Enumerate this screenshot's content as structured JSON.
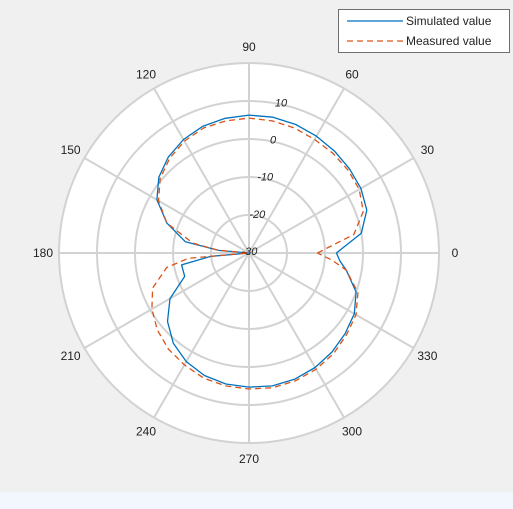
{
  "colors": {
    "background": "#f0f0f0",
    "axes_background": "#ffffff",
    "grid": "#d2d2d2",
    "simulated": "#0072bd",
    "measured": "#d95319"
  },
  "chart_data": {
    "type": "line",
    "subtype": "polar",
    "title": "",
    "theta_unit": "degrees",
    "angle_ticks": [
      0,
      30,
      60,
      90,
      120,
      150,
      180,
      210,
      240,
      270,
      300,
      330
    ],
    "angle_tick_labels": [
      "0",
      "30",
      "60",
      "90",
      "120",
      "150",
      "180",
      "210",
      "240",
      "270",
      "300",
      "330"
    ],
    "r_lim": [
      -30,
      20
    ],
    "r_ticks": [
      -30,
      -20,
      -10,
      0,
      10
    ],
    "r_tick_labels": [
      "-30",
      "-20",
      "-10",
      "0",
      "10"
    ],
    "grid": true,
    "legend_position": "top-right",
    "series": [
      {
        "name": "Simulated value",
        "line_style": "solid",
        "theta": [
          0,
          10,
          20,
          30,
          40,
          50,
          60,
          70,
          80,
          90,
          100,
          110,
          120,
          130,
          140,
          150,
          160,
          170,
          175,
          180,
          185,
          190,
          200,
          210,
          220,
          230,
          240,
          250,
          260,
          270,
          280,
          290,
          300,
          310,
          320,
          330,
          340,
          350,
          355,
          360
        ],
        "r": [
          -7,
          0,
          3,
          4,
          4.5,
          5,
          5.5,
          6,
          6.3,
          6.3,
          6,
          5.5,
          4.5,
          3,
          1,
          -2,
          -7,
          -13,
          -22,
          -30,
          -20,
          -12,
          -12,
          -6,
          -2,
          1,
          3,
          4.3,
          5,
          5.3,
          5.5,
          5.3,
          4.8,
          4,
          3,
          2,
          0,
          -4,
          -6,
          -7
        ]
      },
      {
        "name": "Measured value",
        "line_style": "dashed",
        "theta": [
          0,
          10,
          20,
          30,
          40,
          50,
          60,
          70,
          80,
          90,
          100,
          110,
          120,
          130,
          140,
          150,
          160,
          170,
          175,
          180,
          185,
          190,
          200,
          210,
          220,
          230,
          240,
          250,
          260,
          270,
          280,
          290,
          300,
          310,
          320,
          330,
          340,
          350,
          355,
          360
        ],
        "r": [
          -12,
          -2,
          2,
          3.5,
          4,
          4.3,
          4.5,
          5,
          5.3,
          5.5,
          5.3,
          5,
          4,
          2.5,
          0.5,
          -2.5,
          -7,
          -15,
          -22,
          -30,
          -14,
          -8,
          -3,
          -0.5,
          1.5,
          3,
          4,
          5,
          5.5,
          5.8,
          6,
          5.8,
          5.3,
          4.6,
          3.5,
          2.5,
          0.5,
          -4,
          -8,
          -12
        ]
      }
    ]
  }
}
